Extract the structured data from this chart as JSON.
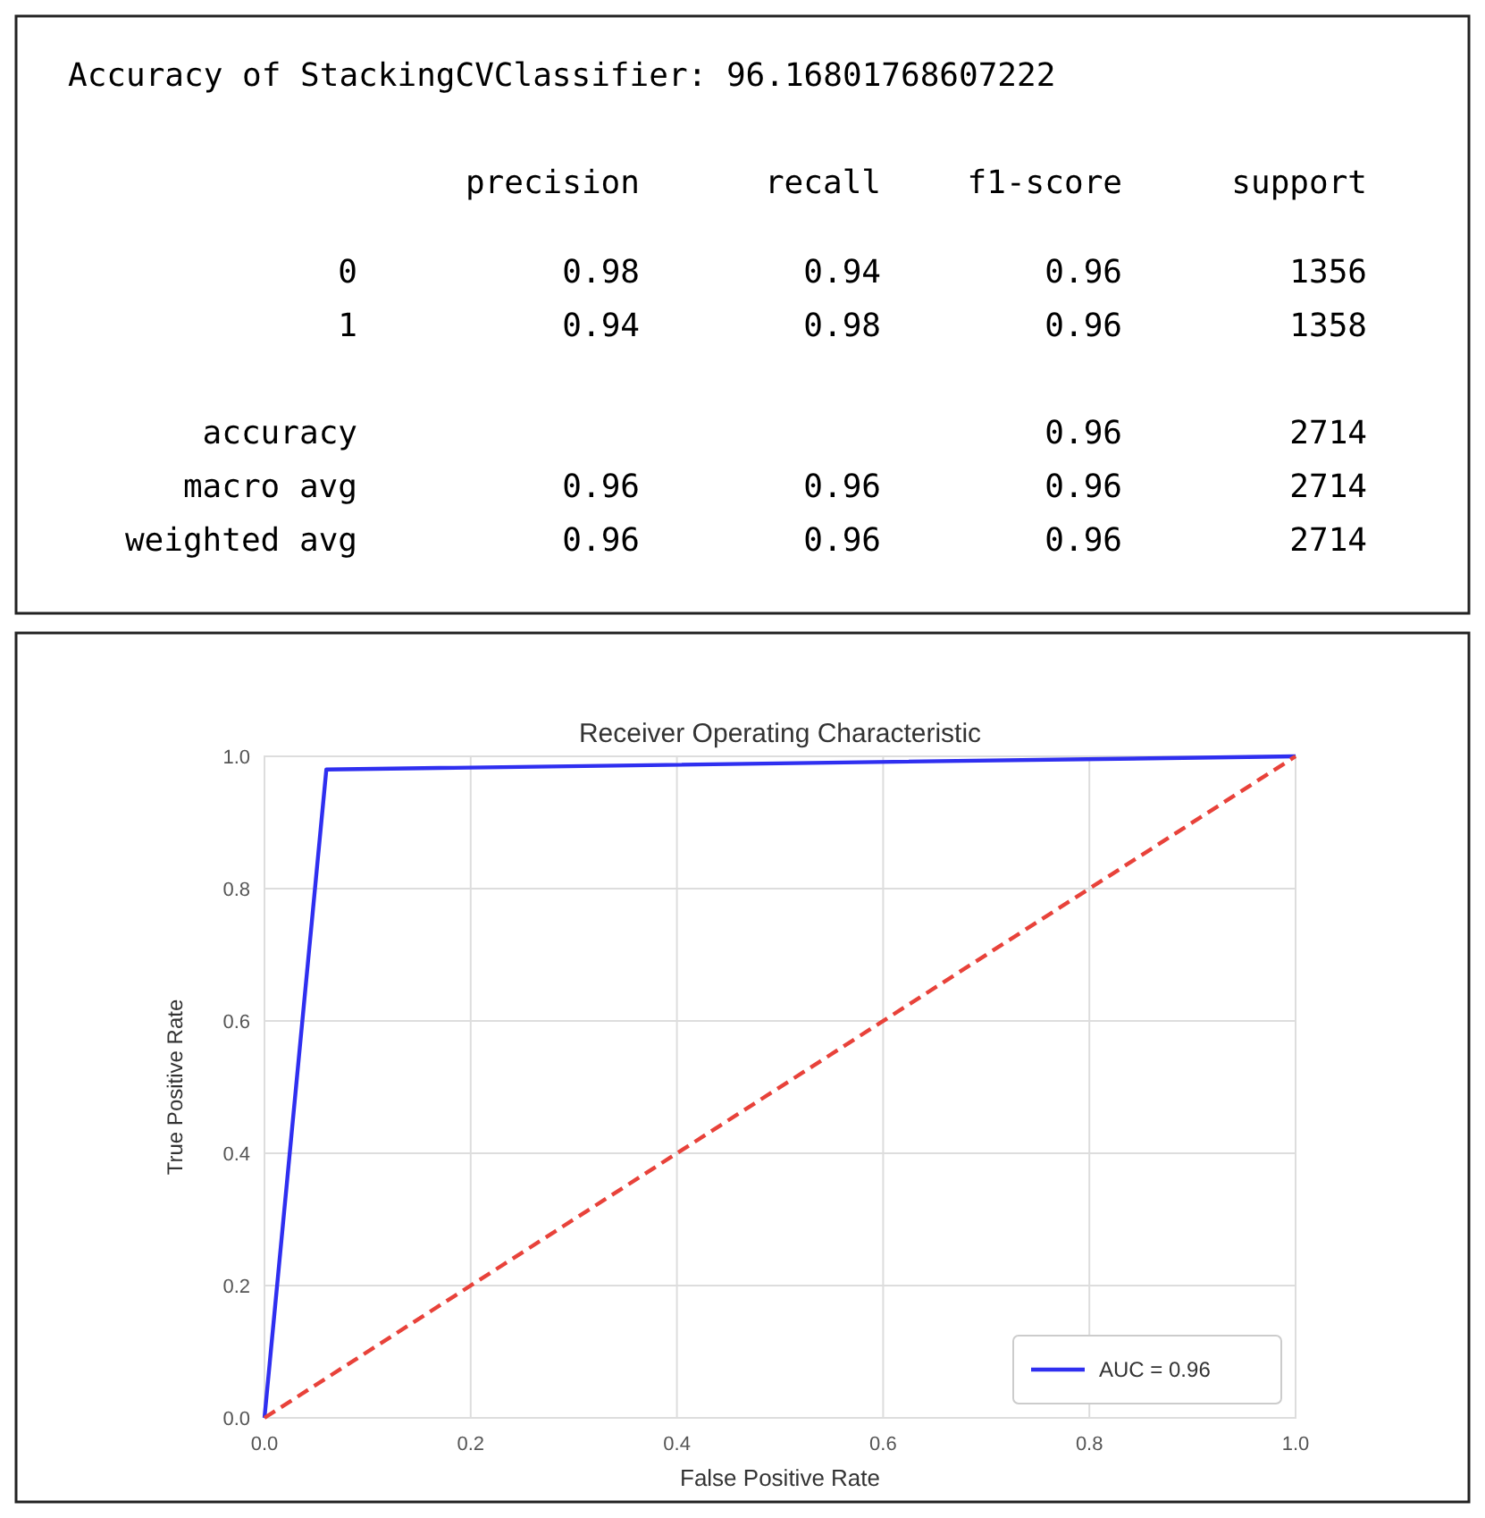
{
  "chart_data": [
    {
      "type": "other",
      "title": "Accuracy of StackingCVClassifier: 96.16801768607222",
      "categories": [
        "precision",
        "recall",
        "f1-score",
        "support"
      ],
      "y_categories": [
        "0",
        "1",
        null,
        "accuracy",
        "macro avg",
        "weighted avg"
      ],
      "cell_labels": [
        [
          "0.98",
          "0.94",
          "0.96",
          "1356"
        ],
        [
          "0.94",
          "0.98",
          "0.96",
          "1358"
        ],
        [
          null,
          null,
          null,
          null
        ],
        [
          null,
          null,
          "0.96",
          "2714"
        ],
        [
          "0.96",
          "0.96",
          "0.96",
          "2714"
        ],
        [
          "0.96",
          "0.96",
          "0.96",
          "2714"
        ]
      ]
    },
    {
      "type": "line",
      "title": "Receiver Operating Characteristic",
      "xlabel": "False Positive Rate",
      "ylabel": "True Positive Rate",
      "xlim": [
        0,
        1
      ],
      "ylim": [
        0,
        1
      ],
      "xticks": [
        {
          "value": 0,
          "label": "0.0"
        },
        {
          "value": 0.2,
          "label": "0.2"
        },
        {
          "value": 0.4,
          "label": "0.4"
        },
        {
          "value": 0.6,
          "label": "0.6"
        },
        {
          "value": 0.8,
          "label": "0.8"
        },
        {
          "value": 1,
          "label": "1.0"
        }
      ],
      "yticks": [
        {
          "value": 0,
          "label": "0.0"
        },
        {
          "value": 0.2,
          "label": "0.2"
        },
        {
          "value": 0.4,
          "label": "0.4"
        },
        {
          "value": 0.6,
          "label": "0.6"
        },
        {
          "value": 0.8,
          "label": "0.8"
        },
        {
          "value": 1,
          "label": "1.0"
        }
      ],
      "grid": true,
      "legend": "bottom right",
      "marker": "none",
      "series": [
        {
          "name": "AUC = 0.96",
          "color": "#2f2ff0",
          "x": [
            0,
            0.06,
            1
          ],
          "values": [
            0,
            0.98,
            1
          ],
          "line_style": "solid"
        },
        {
          "color": "#e8423a",
          "x": [
            0,
            1
          ],
          "values": [
            0,
            1
          ],
          "line_style": "dashed"
        }
      ]
    }
  ]
}
